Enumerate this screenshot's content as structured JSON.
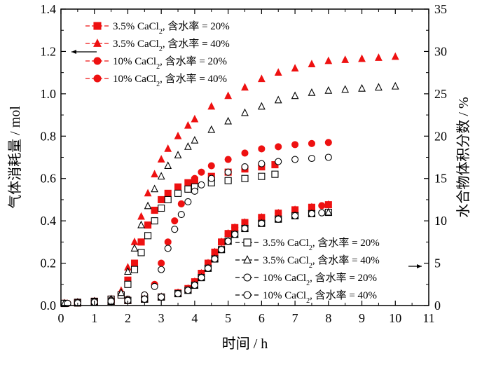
{
  "chart_data": {
    "type": "scatter",
    "x_axis": {
      "label": "时间 / h",
      "range": [
        0,
        11
      ],
      "ticks": [
        "0",
        "1",
        "2",
        "3",
        "4",
        "5",
        "6",
        "7",
        "8",
        "9",
        "10",
        "11"
      ]
    },
    "y_left_axis": {
      "label": "气体消耗量 / mol",
      "range": [
        0,
        1.4
      ],
      "ticks": [
        "0.0",
        "0.2",
        "0.4",
        "0.6",
        "0.8",
        "1.0",
        "1.2",
        "1.4"
      ]
    },
    "y_right_axis": {
      "label": "水合物体积分数 / %",
      "range": [
        0,
        35
      ],
      "ticks": [
        "0",
        "5",
        "10",
        "15",
        "20",
        "25",
        "30",
        "35"
      ]
    },
    "legend_left": {
      "placement": "top-left",
      "entries": [
        {
          "text_html": "3.5% CaCl<tspan baseline-shift=\"sub\" font-size=\"10\">2</tspan>, 含水率 = 20%"
        },
        {
          "text_html": "3.5% CaCl<tspan baseline-shift=\"sub\" font-size=\"10\">2</tspan>, 含水率 = 40%"
        },
        {
          "text_html": "10% CaCl<tspan baseline-shift=\"sub\" font-size=\"10\">2</tspan>, 含水率 = 20%"
        },
        {
          "text_html": "10% CaCl<tspan baseline-shift=\"sub\" font-size=\"10\">2</tspan>, 含水率 = 40%"
        }
      ]
    },
    "legend_right": {
      "placement": "bottom-right",
      "entries": [
        {
          "text_html": "3.5% CaCl<tspan baseline-shift=\"sub\" font-size=\"10\">2</tspan>, 含水率 = 20%"
        },
        {
          "text_html": "3.5% CaCl<tspan baseline-shift=\"sub\" font-size=\"10\">2</tspan>, 含水率 = 40%"
        },
        {
          "text_html": "10% CaCl<tspan baseline-shift=\"sub\" font-size=\"10\">2</tspan>, 含水率 = 20%"
        },
        {
          "text_html": "10% CaCl<tspan baseline-shift=\"sub\" font-size=\"10\">2</tspan>, 含水率 = 40%"
        }
      ]
    },
    "colors": {
      "filled": "#ee1111",
      "hollow": "#000000"
    },
    "series": [
      {
        "group": "gas_consumption",
        "axis": "left",
        "marker": "square",
        "filled": true,
        "points": [
          [
            0.1,
            0.01
          ],
          [
            0.5,
            0.015
          ],
          [
            1.0,
            0.02
          ],
          [
            1.5,
            0.03
          ],
          [
            1.8,
            0.05
          ],
          [
            2.0,
            0.12
          ],
          [
            2.2,
            0.2
          ],
          [
            2.4,
            0.3
          ],
          [
            2.6,
            0.38
          ],
          [
            2.8,
            0.45
          ],
          [
            3.0,
            0.5
          ],
          [
            3.2,
            0.53
          ],
          [
            3.5,
            0.56
          ],
          [
            3.8,
            0.58
          ],
          [
            4.0,
            0.59
          ],
          [
            4.5,
            0.61
          ],
          [
            5.0,
            0.63
          ],
          [
            5.5,
            0.645
          ],
          [
            6.0,
            0.655
          ],
          [
            6.4,
            0.665
          ]
        ]
      },
      {
        "group": "gas_consumption",
        "axis": "left",
        "marker": "triangle",
        "filled": true,
        "points": [
          [
            0.1,
            0.01
          ],
          [
            0.5,
            0.015
          ],
          [
            1.0,
            0.02
          ],
          [
            1.5,
            0.03
          ],
          [
            1.8,
            0.07
          ],
          [
            2.0,
            0.18
          ],
          [
            2.2,
            0.3
          ],
          [
            2.4,
            0.42
          ],
          [
            2.6,
            0.53
          ],
          [
            2.8,
            0.62
          ],
          [
            3.0,
            0.69
          ],
          [
            3.2,
            0.74
          ],
          [
            3.5,
            0.8
          ],
          [
            3.8,
            0.85
          ],
          [
            4.0,
            0.88
          ],
          [
            4.5,
            0.94
          ],
          [
            5.0,
            0.99
          ],
          [
            5.5,
            1.03
          ],
          [
            6.0,
            1.07
          ],
          [
            6.5,
            1.1
          ],
          [
            7.0,
            1.12
          ],
          [
            7.5,
            1.14
          ],
          [
            8.0,
            1.155
          ],
          [
            8.5,
            1.16
          ],
          [
            9.0,
            1.165
          ],
          [
            9.5,
            1.17
          ],
          [
            10.0,
            1.175
          ]
        ]
      },
      {
        "group": "gas_consumption",
        "axis": "left",
        "marker": "circle",
        "filled": true,
        "points": [
          [
            0.2,
            0.01
          ],
          [
            0.5,
            0.015
          ],
          [
            1.0,
            0.02
          ],
          [
            1.5,
            0.025
          ],
          [
            2.0,
            0.03
          ],
          [
            2.5,
            0.05
          ],
          [
            2.8,
            0.1
          ],
          [
            3.0,
            0.2
          ],
          [
            3.2,
            0.3
          ],
          [
            3.4,
            0.4
          ],
          [
            3.6,
            0.48
          ],
          [
            3.8,
            0.55
          ],
          [
            4.0,
            0.6
          ],
          [
            4.2,
            0.63
          ],
          [
            4.5,
            0.66
          ],
          [
            5.0,
            0.69
          ],
          [
            5.5,
            0.72
          ],
          [
            6.0,
            0.74
          ],
          [
            6.5,
            0.75
          ],
          [
            7.0,
            0.76
          ],
          [
            7.5,
            0.765
          ],
          [
            8.0,
            0.77
          ]
        ]
      },
      {
        "group": "gas_consumption",
        "axis": "left",
        "marker": "square",
        "filled": false,
        "points": [
          [
            0.1,
            0.01
          ],
          [
            0.5,
            0.015
          ],
          [
            1.0,
            0.02
          ],
          [
            1.5,
            0.03
          ],
          [
            1.8,
            0.05
          ],
          [
            2.0,
            0.1
          ],
          [
            2.2,
            0.17
          ],
          [
            2.4,
            0.25
          ],
          [
            2.6,
            0.33
          ],
          [
            2.8,
            0.4
          ],
          [
            3.0,
            0.46
          ],
          [
            3.2,
            0.5
          ],
          [
            3.5,
            0.53
          ],
          [
            3.8,
            0.55
          ],
          [
            4.0,
            0.56
          ],
          [
            4.5,
            0.58
          ],
          [
            5.0,
            0.59
          ],
          [
            5.5,
            0.6
          ],
          [
            6.0,
            0.61
          ],
          [
            6.4,
            0.62
          ]
        ]
      },
      {
        "group": "gas_consumption",
        "axis": "left",
        "marker": "triangle",
        "filled": false,
        "points": [
          [
            0.1,
            0.01
          ],
          [
            0.5,
            0.015
          ],
          [
            1.0,
            0.02
          ],
          [
            1.5,
            0.03
          ],
          [
            1.8,
            0.06
          ],
          [
            2.0,
            0.16
          ],
          [
            2.2,
            0.27
          ],
          [
            2.4,
            0.38
          ],
          [
            2.6,
            0.47
          ],
          [
            2.8,
            0.55
          ],
          [
            3.0,
            0.61
          ],
          [
            3.2,
            0.66
          ],
          [
            3.5,
            0.71
          ],
          [
            3.8,
            0.75
          ],
          [
            4.0,
            0.78
          ],
          [
            4.5,
            0.83
          ],
          [
            5.0,
            0.87
          ],
          [
            5.5,
            0.91
          ],
          [
            6.0,
            0.94
          ],
          [
            6.5,
            0.97
          ],
          [
            7.0,
            0.99
          ],
          [
            7.5,
            1.005
          ],
          [
            8.0,
            1.015
          ],
          [
            8.5,
            1.02
          ],
          [
            9.0,
            1.025
          ],
          [
            9.5,
            1.03
          ],
          [
            10.0,
            1.035
          ]
        ]
      },
      {
        "group": "gas_consumption",
        "axis": "left",
        "marker": "circle",
        "filled": false,
        "points": [
          [
            0.2,
            0.01
          ],
          [
            0.5,
            0.015
          ],
          [
            1.0,
            0.02
          ],
          [
            1.5,
            0.025
          ],
          [
            2.0,
            0.03
          ],
          [
            2.5,
            0.05
          ],
          [
            2.8,
            0.09
          ],
          [
            3.0,
            0.17
          ],
          [
            3.2,
            0.27
          ],
          [
            3.4,
            0.36
          ],
          [
            3.6,
            0.43
          ],
          [
            3.8,
            0.49
          ],
          [
            4.0,
            0.54
          ],
          [
            4.2,
            0.57
          ],
          [
            4.5,
            0.6
          ],
          [
            5.0,
            0.63
          ],
          [
            5.5,
            0.655
          ],
          [
            6.0,
            0.67
          ],
          [
            6.5,
            0.68
          ],
          [
            7.0,
            0.69
          ],
          [
            7.5,
            0.695
          ],
          [
            8.0,
            0.7
          ]
        ]
      },
      {
        "group": "hydrate_fraction",
        "axis": "right",
        "marker": "square",
        "filled": true,
        "points": [
          [
            0.1,
            0.25
          ],
          [
            0.5,
            0.3
          ],
          [
            1.0,
            0.4
          ],
          [
            1.5,
            0.5
          ],
          [
            2.0,
            0.6
          ],
          [
            2.5,
            0.75
          ],
          [
            3.0,
            1.0
          ],
          [
            3.5,
            1.5
          ],
          [
            3.8,
            2.0
          ],
          [
            4.0,
            2.8
          ],
          [
            4.2,
            3.8
          ],
          [
            4.4,
            5.0
          ],
          [
            4.6,
            6.3
          ],
          [
            4.8,
            7.5
          ],
          [
            5.0,
            8.5
          ],
          [
            5.2,
            9.2
          ],
          [
            5.5,
            9.8
          ],
          [
            6.0,
            10.4
          ],
          [
            6.5,
            10.9
          ],
          [
            7.0,
            11.3
          ],
          [
            7.5,
            11.6
          ],
          [
            8.0,
            11.9
          ]
        ]
      },
      {
        "group": "hydrate_fraction",
        "axis": "right",
        "marker": "triangle",
        "filled": true,
        "points": [
          [
            0.1,
            0.25
          ],
          [
            0.5,
            0.3
          ],
          [
            1.0,
            0.4
          ],
          [
            1.5,
            0.5
          ],
          [
            2.0,
            0.6
          ],
          [
            2.5,
            0.75
          ],
          [
            3.0,
            1.0
          ],
          [
            3.5,
            1.5
          ],
          [
            3.8,
            2.0
          ],
          [
            4.0,
            2.8
          ],
          [
            4.2,
            3.8
          ],
          [
            4.4,
            5.0
          ],
          [
            4.6,
            6.3
          ],
          [
            4.8,
            7.5
          ],
          [
            5.0,
            8.5
          ],
          [
            5.2,
            9.2
          ],
          [
            5.5,
            9.8
          ],
          [
            6.0,
            10.4
          ],
          [
            6.5,
            10.9
          ],
          [
            7.0,
            11.3
          ],
          [
            7.5,
            11.6
          ],
          [
            8.0,
            11.9
          ]
        ]
      },
      {
        "group": "hydrate_fraction",
        "axis": "right",
        "marker": "circle",
        "filled": true,
        "points": [
          [
            0.2,
            0.25
          ],
          [
            0.5,
            0.3
          ],
          [
            1.0,
            0.4
          ],
          [
            1.5,
            0.5
          ],
          [
            2.0,
            0.6
          ],
          [
            2.5,
            0.75
          ],
          [
            3.0,
            1.0
          ],
          [
            3.5,
            1.5
          ],
          [
            3.8,
            2.0
          ],
          [
            4.0,
            2.8
          ],
          [
            4.2,
            3.8
          ],
          [
            4.4,
            5.0
          ],
          [
            4.6,
            6.3
          ],
          [
            4.8,
            7.5
          ],
          [
            5.0,
            8.5
          ],
          [
            5.2,
            9.2
          ],
          [
            5.5,
            9.8
          ],
          [
            6.0,
            10.4
          ],
          [
            6.5,
            10.9
          ],
          [
            7.0,
            11.3
          ],
          [
            7.5,
            11.6
          ],
          [
            7.8,
            11.8
          ]
        ]
      },
      {
        "group": "hydrate_fraction",
        "axis": "right",
        "marker": "square",
        "filled": false,
        "points": [
          [
            0.1,
            0.25
          ],
          [
            0.5,
            0.3
          ],
          [
            1.0,
            0.4
          ],
          [
            1.5,
            0.5
          ],
          [
            2.0,
            0.6
          ],
          [
            2.5,
            0.75
          ],
          [
            3.0,
            1.0
          ],
          [
            3.5,
            1.4
          ],
          [
            3.8,
            1.8
          ],
          [
            4.0,
            2.4
          ],
          [
            4.2,
            3.3
          ],
          [
            4.4,
            4.4
          ],
          [
            4.6,
            5.5
          ],
          [
            4.8,
            6.6
          ],
          [
            5.0,
            7.6
          ],
          [
            5.2,
            8.4
          ],
          [
            5.5,
            9.1
          ],
          [
            6.0,
            9.7
          ],
          [
            6.5,
            10.2
          ],
          [
            7.0,
            10.6
          ],
          [
            7.5,
            10.85
          ],
          [
            8.0,
            11.0
          ]
        ]
      },
      {
        "group": "hydrate_fraction",
        "axis": "right",
        "marker": "triangle",
        "filled": false,
        "points": [
          [
            0.1,
            0.25
          ],
          [
            0.5,
            0.3
          ],
          [
            1.0,
            0.4
          ],
          [
            1.5,
            0.5
          ],
          [
            2.0,
            0.6
          ],
          [
            2.5,
            0.75
          ],
          [
            3.0,
            1.0
          ],
          [
            3.5,
            1.4
          ],
          [
            3.8,
            1.8
          ],
          [
            4.0,
            2.4
          ],
          [
            4.2,
            3.3
          ],
          [
            4.4,
            4.4
          ],
          [
            4.6,
            5.5
          ],
          [
            4.8,
            6.6
          ],
          [
            5.0,
            7.6
          ],
          [
            5.2,
            8.4
          ],
          [
            5.5,
            9.1
          ],
          [
            6.0,
            9.7
          ],
          [
            6.5,
            10.2
          ],
          [
            7.0,
            10.6
          ],
          [
            7.5,
            10.85
          ],
          [
            8.0,
            11.0
          ]
        ]
      },
      {
        "group": "hydrate_fraction",
        "axis": "right",
        "marker": "circle",
        "filled": false,
        "points": [
          [
            0.2,
            0.25
          ],
          [
            0.5,
            0.3
          ],
          [
            1.0,
            0.4
          ],
          [
            1.5,
            0.5
          ],
          [
            2.0,
            0.6
          ],
          [
            2.5,
            0.75
          ],
          [
            3.0,
            1.0
          ],
          [
            3.5,
            1.4
          ],
          [
            3.8,
            1.8
          ],
          [
            4.0,
            2.4
          ],
          [
            4.2,
            3.3
          ],
          [
            4.4,
            4.4
          ],
          [
            4.6,
            5.5
          ],
          [
            4.8,
            6.6
          ],
          [
            5.0,
            7.6
          ],
          [
            5.2,
            8.4
          ],
          [
            5.5,
            9.1
          ],
          [
            6.0,
            9.7
          ],
          [
            6.5,
            10.2
          ],
          [
            7.0,
            10.6
          ],
          [
            7.5,
            10.85
          ],
          [
            7.8,
            10.95
          ]
        ]
      }
    ]
  }
}
